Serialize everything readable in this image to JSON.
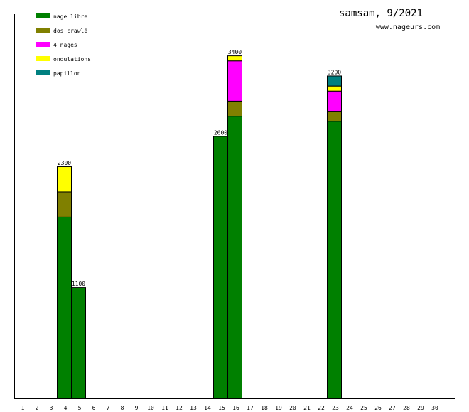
{
  "chart_data": {
    "type": "bar",
    "stacked": true,
    "title": "samsam, 9/2021",
    "subtitle": "www.nageurs.com",
    "xlabel": "",
    "ylabel": "",
    "categories": [
      "1",
      "2",
      "3",
      "4",
      "5",
      "6",
      "7",
      "8",
      "9",
      "10",
      "11",
      "12",
      "13",
      "14",
      "15",
      "16",
      "17",
      "18",
      "19",
      "20",
      "21",
      "22",
      "23",
      "24",
      "25",
      "26",
      "27",
      "28",
      "29",
      "30"
    ],
    "ylim": [
      0,
      3810
    ],
    "legend_position": "top-left",
    "series": [
      {
        "name": "nage libre",
        "color": "#008000",
        "values": {
          "4": 1800,
          "5": 1100,
          "15": 2600,
          "16": 2800,
          "23": 2750
        }
      },
      {
        "name": "dos crawlé",
        "color": "#808000",
        "values": {
          "4": 250,
          "16": 150,
          "23": 100
        }
      },
      {
        "name": "4 nages",
        "color": "#ff00ff",
        "values": {
          "16": 400,
          "23": 200
        }
      },
      {
        "name": "ondulations",
        "color": "#ffff00",
        "values": {
          "4": 250,
          "16": 50,
          "23": 50
        }
      },
      {
        "name": "papillon",
        "color": "#008080",
        "values": {
          "23": 100
        }
      }
    ],
    "totals": {
      "4": "2300",
      "5": "1100",
      "15": "2600",
      "16": "3400",
      "23": "3200"
    }
  }
}
